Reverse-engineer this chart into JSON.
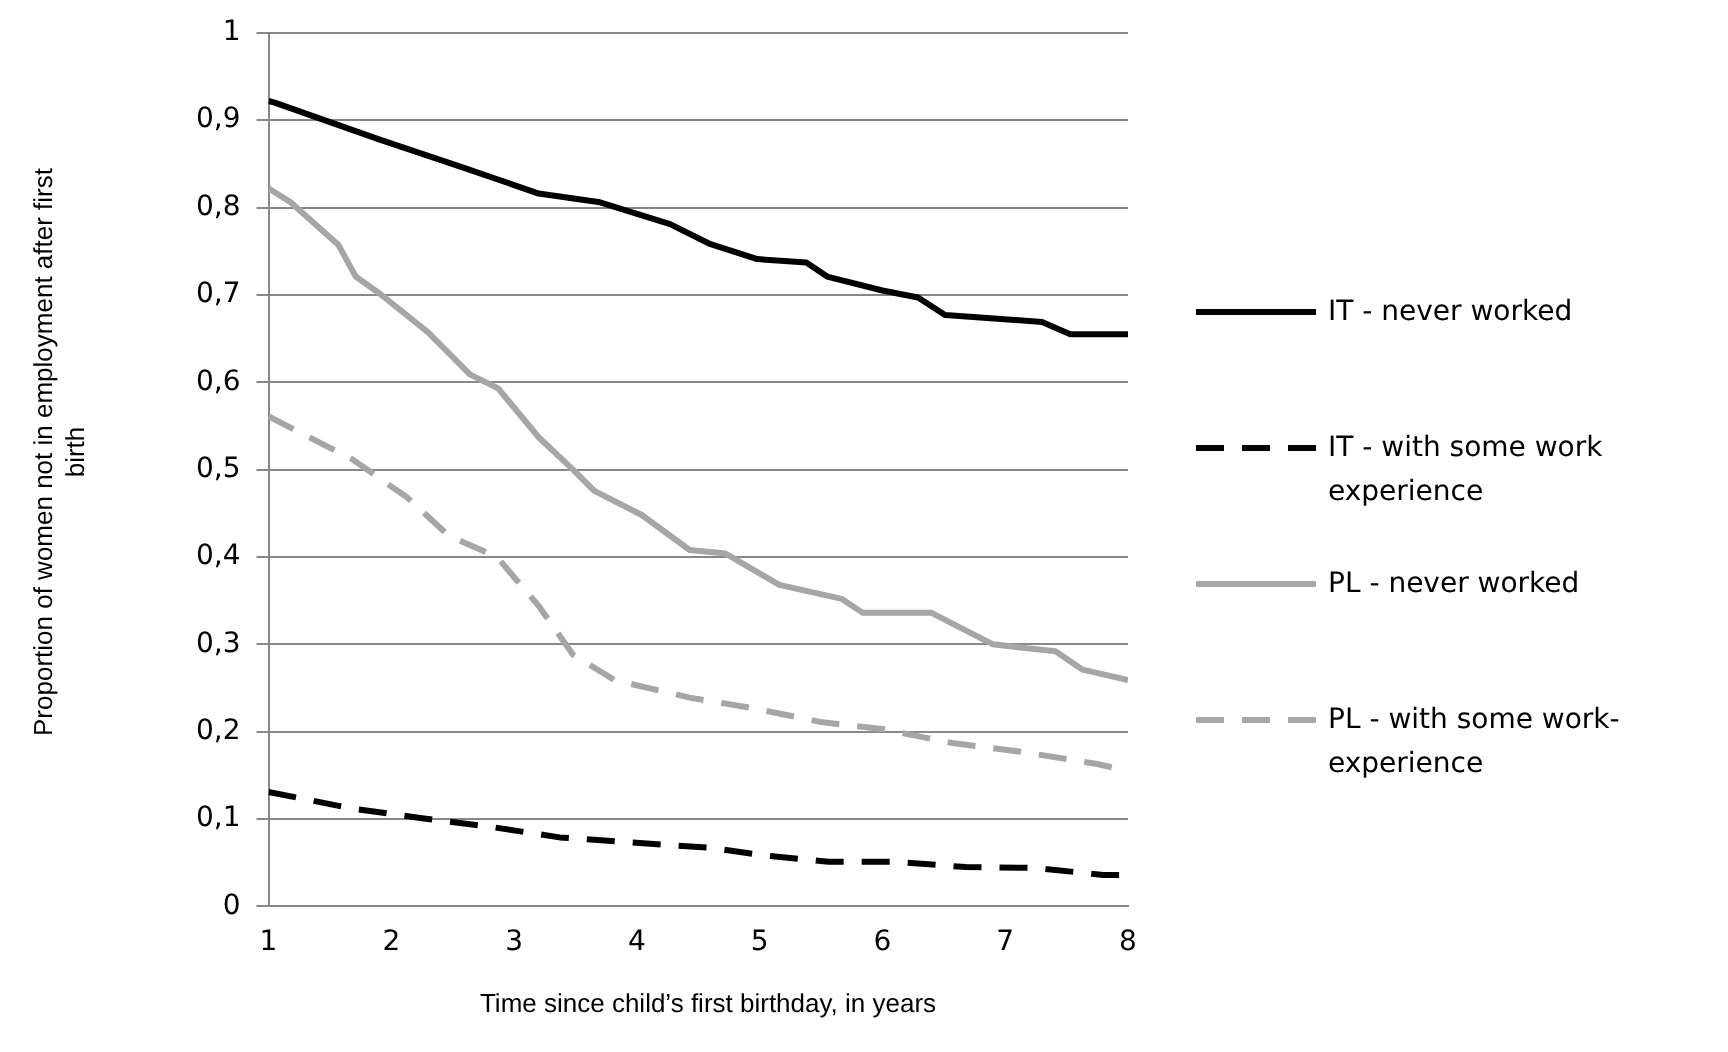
{
  "chart_data": {
    "type": "line",
    "xlabel": "Time since child’s first birthday, in years",
    "ylabel": "Proportion of women not in employment after first birth",
    "xlim": [
      1,
      8
    ],
    "xticks": [
      1,
      2,
      3,
      4,
      5,
      6,
      7,
      8
    ],
    "ylim": [
      0,
      1
    ],
    "yticks": [
      0,
      {
        "value": 0.1,
        "label": "0,1"
      },
      {
        "value": 0.2,
        "label": "0,2"
      },
      {
        "value": 0.3,
        "label": "0,3"
      },
      {
        "value": 0.4,
        "label": "0,4"
      },
      {
        "value": 0.5,
        "label": "0,5"
      },
      {
        "value": 0.6,
        "label": "0,6"
      },
      {
        "value": 0.7,
        "label": "0,7"
      },
      {
        "value": 0.8,
        "label": "0,8"
      },
      {
        "value": 0.9,
        "label": "0,9"
      },
      1
    ],
    "grid": "y",
    "legend": "right",
    "marker": "none",
    "series": [
      {
        "name": "IT - never worked",
        "color": "#000000",
        "line_style": "solid",
        "x": [
          1,
          1.05,
          1.9,
          2.58,
          3.2,
          3.7,
          4.27,
          4.6,
          4.98,
          5.38,
          5.55,
          6.0,
          6.29,
          6.51,
          6.91,
          7.3,
          7.53,
          8
        ],
        "values": [
          0.922,
          0.92,
          0.878,
          0.846,
          0.816,
          0.806,
          0.781,
          0.758,
          0.741,
          0.737,
          0.721,
          0.705,
          0.697,
          0.677,
          0.673,
          0.669,
          0.655,
          0.655
        ]
      },
      {
        "name": "IT - with some work experience",
        "color": "#000000",
        "line_style": "dashed",
        "x": [
          1,
          1.68,
          2.25,
          2.81,
          3.37,
          4.6,
          5.0,
          5.56,
          6.12,
          6.68,
          7.24,
          7.8,
          8
        ],
        "values": [
          0.131,
          0.112,
          0.101,
          0.091,
          0.079,
          0.067,
          0.059,
          0.051,
          0.051,
          0.045,
          0.044,
          0.036,
          0.036
        ]
      },
      {
        "name": "PL - never worked",
        "color": "#a6a6a6",
        "line_style": "solid",
        "x": [
          1,
          1.18,
          1.57,
          1.71,
          1.91,
          2.3,
          2.64,
          2.87,
          3.2,
          3.48,
          3.65,
          4.04,
          4.43,
          4.72,
          5.16,
          5.67,
          5.84,
          6.4,
          6.9,
          7.41,
          7.63,
          8
        ],
        "values": [
          0.822,
          0.806,
          0.757,
          0.721,
          0.701,
          0.657,
          0.609,
          0.593,
          0.537,
          0.5,
          0.476,
          0.448,
          0.408,
          0.404,
          0.368,
          0.352,
          0.336,
          0.336,
          0.3,
          0.292,
          0.271,
          0.259
        ]
      },
      {
        "name": "PL - with some work-experience",
        "color": "#a6a6a6",
        "line_style": "dashed",
        "x": [
          1,
          1.68,
          2.13,
          2.47,
          2.86,
          3.2,
          3.48,
          3.82,
          4.43,
          4.94,
          5.5,
          6.0,
          6.57,
          7.13,
          7.75,
          8
        ],
        "values": [
          0.561,
          0.512,
          0.468,
          0.424,
          0.4,
          0.344,
          0.288,
          0.259,
          0.239,
          0.227,
          0.211,
          0.203,
          0.187,
          0.177,
          0.163,
          0.155
        ]
      }
    ]
  }
}
